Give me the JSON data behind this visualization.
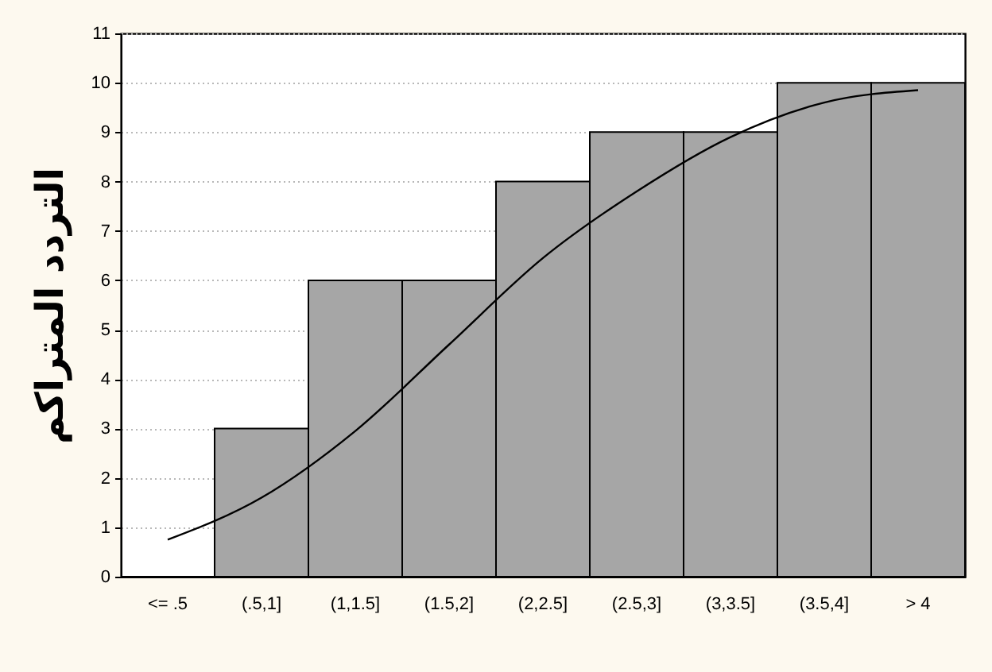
{
  "chart_data": {
    "type": "bar",
    "ylabel": "التردد المتراكم",
    "categories": [
      "<= .5",
      "(.5,1]",
      "(1,1.5]",
      "(1.5,2]",
      "(2,2.5]",
      "(2.5,3]",
      "(3,3.5]",
      "(3.5,4]",
      "> 4"
    ],
    "series": [
      {
        "color": "#a6a6a6",
        "values": [
          0,
          3,
          6,
          6,
          8,
          9,
          9,
          10,
          10
        ]
      },
      {
        "type": "line",
        "color": "#000000",
        "x": [
          "<= .5",
          "(.5,1]",
          "(1,1.5]",
          "(1.5,2]",
          "(2,2.5]",
          "(2.5,3]",
          "(3,3.5]",
          "(3.5,4]",
          "> 4"
        ],
        "values": [
          0.75,
          1.6,
          2.95,
          4.7,
          6.45,
          7.8,
          8.9,
          9.6,
          9.85
        ]
      }
    ],
    "ylim": [
      0,
      11
    ],
    "yticks": [
      0,
      1,
      2,
      3,
      4,
      5,
      6,
      7,
      8,
      9,
      10,
      11
    ],
    "grid": "y"
  }
}
